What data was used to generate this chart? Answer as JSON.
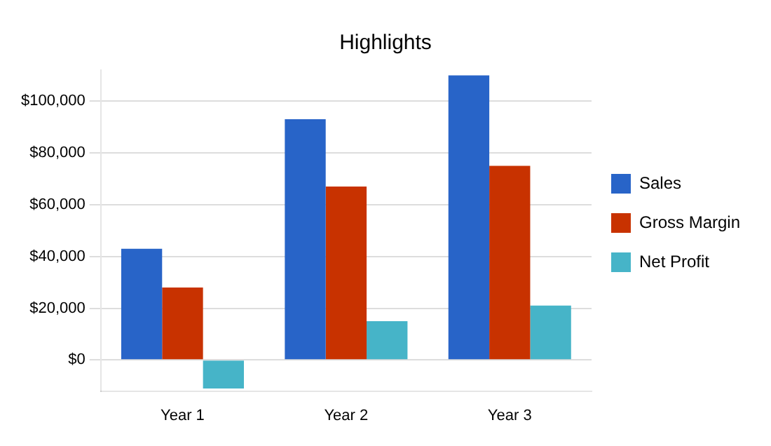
{
  "chart_data": {
    "type": "bar",
    "title": "Highlights",
    "categories": [
      "Year 1",
      "Year 2",
      "Year 3"
    ],
    "series": [
      {
        "name": "Sales",
        "color": "#2864c8",
        "values": [
          43000,
          93000,
          110000
        ]
      },
      {
        "name": "Gross Margin",
        "color": "#c83200",
        "values": [
          28000,
          67000,
          75000
        ]
      },
      {
        "name": "Net Profit",
        "color": "#46b4c8",
        "values": [
          -11000,
          15000,
          21000
        ]
      }
    ],
    "ylim": [
      -12000,
      112000
    ],
    "yticks": [
      {
        "value": 0,
        "label": "$0"
      },
      {
        "value": 20000,
        "label": "$20,000"
      },
      {
        "value": 40000,
        "label": "$40,000"
      },
      {
        "value": 60000,
        "label": "$60,000"
      },
      {
        "value": 80000,
        "label": "$80,000"
      },
      {
        "value": 100000,
        "label": "$100,000"
      }
    ],
    "grid": "y",
    "legend": "right"
  }
}
